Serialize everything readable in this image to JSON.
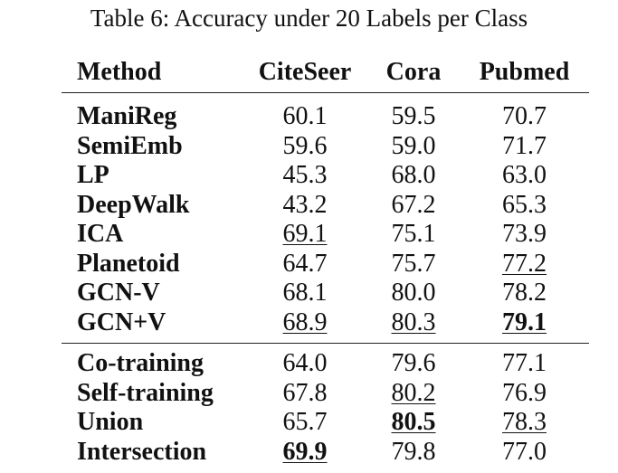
{
  "caption": "Table 6: Accuracy under 20 Labels per Class",
  "headers": [
    "Method",
    "CiteSeer",
    "Cora",
    "Pubmed"
  ],
  "group1": [
    {
      "method": "ManiReg",
      "citeseer": "60.1",
      "cora": "59.5",
      "pubmed": "70.7"
    },
    {
      "method": "SemiEmb",
      "citeseer": "59.6",
      "cora": "59.0",
      "pubmed": "71.7"
    },
    {
      "method": "LP",
      "citeseer": "45.3",
      "cora": "68.0",
      "pubmed": "63.0"
    },
    {
      "method": "DeepWalk",
      "citeseer": "43.2",
      "cora": "67.2",
      "pubmed": "65.3"
    },
    {
      "method": "ICA",
      "citeseer": "69.1",
      "cora": "75.1",
      "pubmed": "73.9"
    },
    {
      "method": "Planetoid",
      "citeseer": "64.7",
      "cora": "75.7",
      "pubmed": "77.2"
    },
    {
      "method": "GCN-V",
      "citeseer": "68.1",
      "cora": "80.0",
      "pubmed": "78.2"
    },
    {
      "method": "GCN+V",
      "citeseer": "68.9",
      "cora": "80.3",
      "pubmed": "79.1"
    }
  ],
  "group2": [
    {
      "method": "Co-training",
      "citeseer": "64.0",
      "cora": "79.6",
      "pubmed": "77.1"
    },
    {
      "method": "Self-training",
      "citeseer": "67.8",
      "cora": "80.2",
      "pubmed": "76.9"
    },
    {
      "method": "Union",
      "citeseer": "65.7",
      "cora": "80.5",
      "pubmed": "78.3"
    },
    {
      "method": "Intersection",
      "citeseer": "69.9",
      "cora": "79.8",
      "pubmed": "77.0"
    }
  ]
}
